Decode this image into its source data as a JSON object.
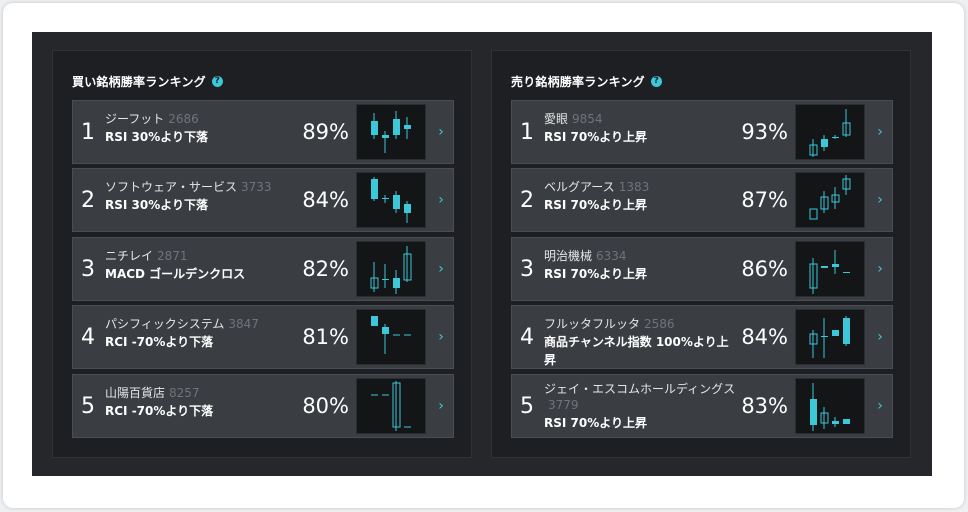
{
  "colors": {
    "accent": "#3cc8d8"
  },
  "panels": [
    {
      "title": "買い銘柄勝率ランキング",
      "items": [
        {
          "rank": "1",
          "name": "ジーフット",
          "code": "2686",
          "condition": "RSI 30%より下落",
          "percent": "89%"
        },
        {
          "rank": "2",
          "name": "ソフトウェア・サービス",
          "code": "3733",
          "condition": "RSI 30%より下落",
          "percent": "84%"
        },
        {
          "rank": "3",
          "name": "ニチレイ",
          "code": "2871",
          "condition": "MACD ゴールデンクロス",
          "percent": "82%"
        },
        {
          "rank": "4",
          "name": "パシフィックシステム",
          "code": "3847",
          "condition": "RCI -70%より下落",
          "percent": "81%"
        },
        {
          "rank": "5",
          "name": "山陽百貨店",
          "code": "8257",
          "condition": "RCI -70%より下落",
          "percent": "80%"
        }
      ]
    },
    {
      "title": "売り銘柄勝率ランキング",
      "items": [
        {
          "rank": "1",
          "name": "愛眼",
          "code": "9854",
          "condition": "RSI 70%より上昇",
          "percent": "93%"
        },
        {
          "rank": "2",
          "name": "ベルグアース",
          "code": "1383",
          "condition": "RSI 70%より上昇",
          "percent": "87%"
        },
        {
          "rank": "3",
          "name": "明治機械",
          "code": "6334",
          "condition": "RSI 70%より上昇",
          "percent": "86%"
        },
        {
          "rank": "4",
          "name": "フルッタフルッタ",
          "code": "2586",
          "condition": "商品チャンネル指数 100%より上昇",
          "percent": "84%"
        },
        {
          "rank": "5",
          "name": "ジェイ・エスコムホールディングス",
          "code": "3779",
          "condition": "RSI 70%より上昇",
          "percent": "83%"
        }
      ]
    }
  ]
}
